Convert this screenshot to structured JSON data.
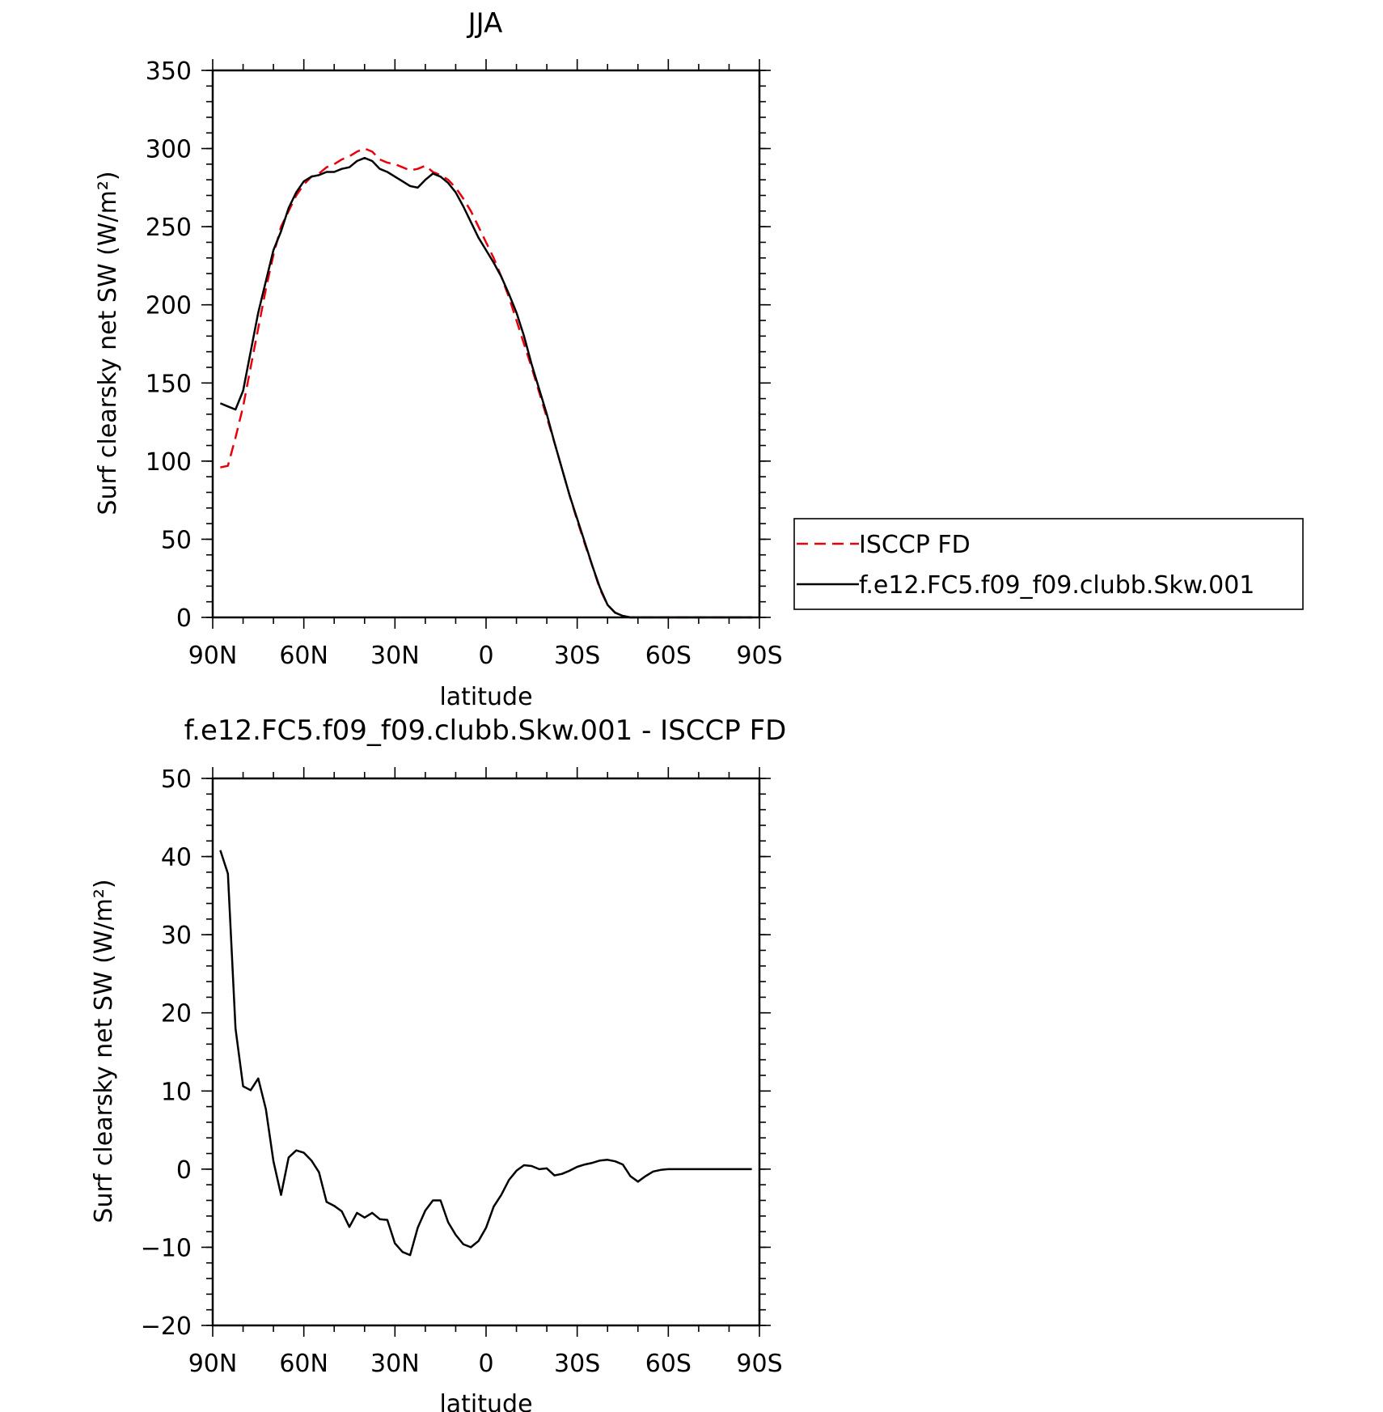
{
  "chart_data": [
    {
      "type": "line",
      "title": "JJA",
      "xlabel": "latitude",
      "ylabel": "Surf clearsky net SW (W/m²)",
      "xlim": [
        90,
        -90
      ],
      "ylim": [
        0,
        350
      ],
      "x_ticks": [
        90,
        60,
        30,
        0,
        -30,
        -60,
        -90
      ],
      "x_tick_labels": [
        "90N",
        "60N",
        "30N",
        "0",
        "30S",
        "60S",
        "90S"
      ],
      "y_ticks": [
        0,
        50,
        100,
        150,
        200,
        250,
        300,
        350
      ],
      "y_tick_labels": [
        "0",
        "50",
        "100",
        "150",
        "200",
        "250",
        "300",
        "350"
      ],
      "legend": {
        "placement": "right",
        "entries": [
          {
            "label": "ISCCP FD",
            "color": "#e8000b",
            "style": "dashed"
          },
          {
            "label": "f.e12.FC5.f09_f09.clubb.Skw.001",
            "color": "#000000",
            "style": "solid"
          }
        ]
      },
      "series": [
        {
          "name": "ISCCP FD",
          "color": "#e8000b",
          "dash": true,
          "x": [
            87.5,
            85,
            82.5,
            80,
            77.5,
            75,
            72.5,
            70,
            67.5,
            65,
            62.5,
            60,
            57.5,
            55,
            52.5,
            50,
            47.5,
            45,
            42.5,
            40,
            37.5,
            35,
            32.5,
            30,
            27.5,
            25,
            22.5,
            20,
            17.5,
            15,
            12.5,
            10,
            7.5,
            5,
            2.5,
            0,
            -2.5,
            -5,
            -7.5,
            -10,
            -12.5,
            -15,
            -17.5,
            -20,
            -22.5,
            -25,
            -27.5,
            -30,
            -32.5,
            -35,
            -37.5,
            -40,
            -42.5,
            -45,
            -47.5,
            -50,
            -52.5,
            -55,
            -57.5,
            -60,
            -62.5,
            -65,
            -67.5,
            -70,
            -72.5,
            -75,
            -77.5,
            -80,
            -82.5,
            -85,
            -87.5
          ],
          "y": [
            96,
            97,
            115,
            135,
            160,
            185,
            210,
            232,
            250,
            260,
            270,
            277,
            282,
            284,
            288,
            290,
            293,
            295,
            298,
            300,
            298,
            293,
            291,
            290,
            288,
            286,
            287,
            289,
            285,
            283,
            280,
            275,
            268,
            260,
            250,
            240,
            230,
            218,
            205,
            190,
            175,
            160,
            144,
            128,
            112,
            95,
            78,
            62,
            47,
            33,
            18,
            8,
            3,
            1,
            0,
            0,
            0,
            0,
            0,
            0,
            0,
            0,
            0,
            0,
            0,
            0,
            0,
            0,
            0,
            0,
            0
          ]
        },
        {
          "name": "f.e12.FC5.f09_f09.clubb.Skw.001",
          "color": "#000000",
          "dash": false,
          "x": [
            87.5,
            85,
            82.5,
            80,
            77.5,
            75,
            72.5,
            70,
            67.5,
            65,
            62.5,
            60,
            57.5,
            55,
            52.5,
            50,
            47.5,
            45,
            42.5,
            40,
            37.5,
            35,
            32.5,
            30,
            27.5,
            25,
            22.5,
            20,
            17.5,
            15,
            12.5,
            10,
            7.5,
            5,
            2.5,
            0,
            -2.5,
            -5,
            -7.5,
            -10,
            -12.5,
            -15,
            -17.5,
            -20,
            -22.5,
            -25,
            -27.5,
            -30,
            -32.5,
            -35,
            -37.5,
            -40,
            -42.5,
            -45,
            -47.5,
            -50,
            -52.5,
            -55,
            -57.5,
            -60,
            -62.5,
            -65,
            -67.5,
            -70,
            -72.5,
            -75,
            -77.5,
            -80,
            -82.5,
            -85,
            -87.5
          ],
          "y": [
            137,
            135,
            133,
            145,
            170,
            195,
            215,
            235,
            247,
            262,
            272,
            279,
            282,
            283,
            285,
            285,
            287,
            288,
            292,
            294,
            292,
            287,
            285,
            282,
            279,
            276,
            275,
            280,
            284,
            282,
            278,
            272,
            263,
            253,
            243,
            235,
            227,
            218,
            207,
            195,
            180,
            162,
            146,
            130,
            112,
            95,
            78,
            63,
            48,
            33,
            19,
            8,
            3,
            1,
            0,
            0,
            0,
            0,
            0,
            0,
            0,
            0,
            0,
            0,
            0,
            0,
            0,
            0,
            0,
            0,
            0
          ]
        }
      ]
    },
    {
      "type": "line",
      "title": "f.e12.FC5.f09_f09.clubb.Skw.001 - ISCCP FD",
      "xlabel": "latitude",
      "ylabel": "Surf clearsky net SW (W/m²)",
      "xlim": [
        90,
        -90
      ],
      "ylim": [
        -20,
        50
      ],
      "x_ticks": [
        90,
        60,
        30,
        0,
        -30,
        -60,
        -90
      ],
      "x_tick_labels": [
        "90N",
        "60N",
        "30N",
        "0",
        "30S",
        "60S",
        "90S"
      ],
      "y_ticks": [
        -20,
        -10,
        0,
        10,
        20,
        30,
        40,
        50
      ],
      "y_tick_labels": [
        "-20",
        "-10",
        "0",
        "10",
        "20",
        "30",
        "40",
        "50"
      ],
      "series": [
        {
          "color": "#000000",
          "dash": false,
          "x": [
            87.5,
            85,
            82.5,
            80,
            77.5,
            75,
            72.5,
            70,
            67.5,
            65,
            62.5,
            60,
            57.5,
            55,
            52.5,
            50,
            47.5,
            45,
            42.5,
            40,
            37.5,
            35,
            32.5,
            30,
            27.5,
            25,
            22.5,
            20,
            17.5,
            15,
            12.5,
            10,
            7.5,
            5,
            2.5,
            0,
            -2.5,
            -5,
            -7.5,
            -10,
            -12.5,
            -15,
            -17.5,
            -20,
            -22.5,
            -25,
            -27.5,
            -30,
            -32.5,
            -35,
            -37.5,
            -40,
            -42.5,
            -45,
            -47.5,
            -50,
            -52.5,
            -55,
            -57.5,
            -60,
            -62.5,
            -65,
            -67.5,
            -70,
            -72.5,
            -75,
            -77.5,
            -80,
            -82.5,
            -85,
            -87.5
          ],
          "y": [
            40.8,
            37.8,
            18,
            10.6,
            10.1,
            11.6,
            7.7,
            1,
            -3.3,
            1.5,
            2.4,
            2.1,
            1.1,
            -0.4,
            -4.2,
            -4.7,
            -5.4,
            -7.4,
            -5.6,
            -6.2,
            -5.6,
            -6.4,
            -6.5,
            -9.5,
            -10.6,
            -11,
            -7.5,
            -5.3,
            -4,
            -4,
            -6.8,
            -8.4,
            -9.6,
            -10,
            -9.2,
            -7.5,
            -4.8,
            -3.3,
            -1.4,
            -0.2,
            0.5,
            0.4,
            0,
            0.1,
            -0.8,
            -0.6,
            -0.2,
            0.3,
            0.6,
            0.8,
            1.1,
            1.2,
            1,
            0.6,
            -0.9,
            -1.6,
            -0.9,
            -0.3,
            -0.1,
            0,
            0,
            0,
            0,
            0,
            0,
            0,
            0,
            0,
            0,
            0,
            0
          ]
        }
      ]
    }
  ]
}
